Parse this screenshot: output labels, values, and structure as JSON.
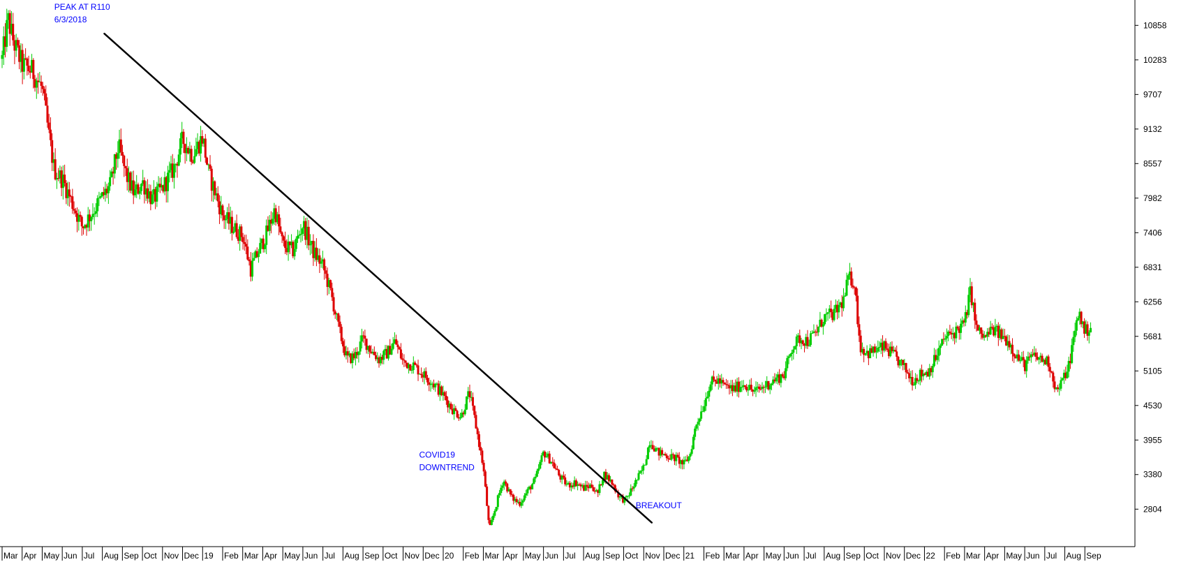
{
  "chart_data": {
    "type": "bar",
    "subtype": "candlestick",
    "title": "",
    "xlabel": "",
    "ylabel": "",
    "up_color": "#00cc00",
    "down_color": "#dd0000",
    "y_ticks": [
      2804,
      3380,
      3955,
      4530,
      5105,
      5681,
      6256,
      6831,
      7406,
      7982,
      8557,
      9132,
      9707,
      10283,
      10858
    ],
    "ylim": [
      2180,
      11280
    ],
    "x_labels": [
      {
        "label": "Mar",
        "t": 0
      },
      {
        "label": "Apr",
        "t": 1
      },
      {
        "label": "May",
        "t": 2
      },
      {
        "label": "Jun",
        "t": 3
      },
      {
        "label": "Jul",
        "t": 4
      },
      {
        "label": "Aug",
        "t": 5
      },
      {
        "label": "Sep",
        "t": 6
      },
      {
        "label": "Oct",
        "t": 7
      },
      {
        "label": "Nov",
        "t": 8
      },
      {
        "label": "Dec",
        "t": 9
      },
      {
        "label": "19",
        "t": 10
      },
      {
        "label": "Feb",
        "t": 11
      },
      {
        "label": "Mar",
        "t": 12
      },
      {
        "label": "Apr",
        "t": 13
      },
      {
        "label": "May",
        "t": 14
      },
      {
        "label": "Jun",
        "t": 15
      },
      {
        "label": "Jul",
        "t": 16
      },
      {
        "label": "Aug",
        "t": 17
      },
      {
        "label": "Sep",
        "t": 18
      },
      {
        "label": "Oct",
        "t": 19
      },
      {
        "label": "Nov",
        "t": 20
      },
      {
        "label": "Dec",
        "t": 21
      },
      {
        "label": "20",
        "t": 22
      },
      {
        "label": "Feb",
        "t": 23
      },
      {
        "label": "Mar",
        "t": 24
      },
      {
        "label": "Apr",
        "t": 25
      },
      {
        "label": "May",
        "t": 26
      },
      {
        "label": "Jun",
        "t": 27
      },
      {
        "label": "Jul",
        "t": 28
      },
      {
        "label": "Aug",
        "t": 29
      },
      {
        "label": "Sep",
        "t": 30
      },
      {
        "label": "Oct",
        "t": 31
      },
      {
        "label": "Nov",
        "t": 32
      },
      {
        "label": "Dec",
        "t": 33
      },
      {
        "label": "21",
        "t": 34
      },
      {
        "label": "Feb",
        "t": 35
      },
      {
        "label": "Mar",
        "t": 36
      },
      {
        "label": "Apr",
        "t": 37
      },
      {
        "label": "May",
        "t": 38
      },
      {
        "label": "Jun",
        "t": 39
      },
      {
        "label": "Jul",
        "t": 40
      },
      {
        "label": "Aug",
        "t": 41
      },
      {
        "label": "Sep",
        "t": 42
      },
      {
        "label": "Oct",
        "t": 43
      },
      {
        "label": "Nov",
        "t": 44
      },
      {
        "label": "Dec",
        "t": 45
      },
      {
        "label": "22",
        "t": 46
      },
      {
        "label": "Feb",
        "t": 47
      },
      {
        "label": "Mar",
        "t": 48
      },
      {
        "label": "Apr",
        "t": 49
      },
      {
        "label": "May",
        "t": 50
      },
      {
        "label": "Jun",
        "t": 51
      },
      {
        "label": "Jul",
        "t": 52
      },
      {
        "label": "Aug",
        "t": 53
      },
      {
        "label": "Sep",
        "t": 54
      }
    ],
    "price_path": [
      [
        0,
        10300
      ],
      [
        0.3,
        10950
      ],
      [
        0.6,
        10550
      ],
      [
        1.0,
        10200
      ],
      [
        1.5,
        10100
      ],
      [
        2.0,
        9800
      ],
      [
        2.3,
        9100
      ],
      [
        2.6,
        8450
      ],
      [
        3.0,
        8300
      ],
      [
        3.5,
        7900
      ],
      [
        4.0,
        7500
      ],
      [
        4.3,
        7650
      ],
      [
        4.8,
        7900
      ],
      [
        5.4,
        8200
      ],
      [
        5.8,
        8850
      ],
      [
        6.2,
        8350
      ],
      [
        6.6,
        8050
      ],
      [
        7.0,
        8250
      ],
      [
        7.5,
        7950
      ],
      [
        8.0,
        8150
      ],
      [
        8.6,
        8500
      ],
      [
        9.0,
        8950
      ],
      [
        9.5,
        8700
      ],
      [
        10.0,
        9000
      ],
      [
        10.3,
        8400
      ],
      [
        10.6,
        8100
      ],
      [
        11.0,
        7700
      ],
      [
        11.5,
        7500
      ],
      [
        12.0,
        7350
      ],
      [
        12.4,
        6800
      ],
      [
        12.8,
        7100
      ],
      [
        13.2,
        7400
      ],
      [
        13.6,
        7800
      ],
      [
        14.0,
        7200
      ],
      [
        14.5,
        7100
      ],
      [
        15.0,
        7550
      ],
      [
        15.5,
        7100
      ],
      [
        16.0,
        6850
      ],
      [
        16.4,
        6400
      ],
      [
        16.8,
        5800
      ],
      [
        17.2,
        5300
      ],
      [
        17.6,
        5350
      ],
      [
        18.0,
        5650
      ],
      [
        18.4,
        5450
      ],
      [
        18.8,
        5300
      ],
      [
        19.2,
        5400
      ],
      [
        19.6,
        5600
      ],
      [
        20.0,
        5250
      ],
      [
        20.5,
        5200
      ],
      [
        21.0,
        5050
      ],
      [
        21.5,
        4900
      ],
      [
        22.0,
        4700
      ],
      [
        22.5,
        4450
      ],
      [
        22.9,
        4350
      ],
      [
        23.3,
        4750
      ],
      [
        23.6,
        4250
      ],
      [
        24.0,
        3500
      ],
      [
        24.3,
        2450
      ],
      [
        24.7,
        2950
      ],
      [
        25.0,
        3300
      ],
      [
        25.4,
        3000
      ],
      [
        25.8,
        2900
      ],
      [
        26.2,
        3100
      ],
      [
        26.6,
        3300
      ],
      [
        27.0,
        3750
      ],
      [
        27.4,
        3600
      ],
      [
        27.8,
        3350
      ],
      [
        28.2,
        3200
      ],
      [
        28.6,
        3250
      ],
      [
        29.0,
        3150
      ],
      [
        29.4,
        3200
      ],
      [
        29.7,
        3050
      ],
      [
        30.0,
        3400
      ],
      [
        30.4,
        3250
      ],
      [
        30.8,
        3000
      ],
      [
        31.1,
        2950
      ],
      [
        31.5,
        3200
      ],
      [
        32.0,
        3500
      ],
      [
        32.3,
        3950
      ],
      [
        32.7,
        3750
      ],
      [
        33.1,
        3700
      ],
      [
        33.6,
        3650
      ],
      [
        34.0,
        3550
      ],
      [
        34.3,
        3700
      ],
      [
        34.6,
        4200
      ],
      [
        35.0,
        4550
      ],
      [
        35.3,
        4900
      ],
      [
        35.7,
        4950
      ],
      [
        36.0,
        4850
      ],
      [
        36.5,
        4800
      ],
      [
        37.0,
        4900
      ],
      [
        37.5,
        4750
      ],
      [
        38.0,
        4850
      ],
      [
        38.5,
        4950
      ],
      [
        39.0,
        5050
      ],
      [
        39.4,
        5500
      ],
      [
        39.8,
        5650
      ],
      [
        40.2,
        5600
      ],
      [
        40.6,
        5750
      ],
      [
        41.0,
        6000
      ],
      [
        41.5,
        6050
      ],
      [
        42.0,
        6300
      ],
      [
        42.2,
        6650
      ],
      [
        42.5,
        6600
      ],
      [
        42.8,
        5500
      ],
      [
        43.2,
        5400
      ],
      [
        43.6,
        5450
      ],
      [
        44.0,
        5500
      ],
      [
        44.5,
        5350
      ],
      [
        45.0,
        5150
      ],
      [
        45.4,
        4950
      ],
      [
        45.8,
        5050
      ],
      [
        46.2,
        5100
      ],
      [
        46.6,
        5350
      ],
      [
        47.0,
        5650
      ],
      [
        47.5,
        5750
      ],
      [
        48.0,
        5900
      ],
      [
        48.3,
        6450
      ],
      [
        48.6,
        5800
      ],
      [
        49.0,
        5650
      ],
      [
        49.4,
        5800
      ],
      [
        49.8,
        5700
      ],
      [
        50.2,
        5600
      ],
      [
        50.6,
        5350
      ],
      [
        51.0,
        5200
      ],
      [
        51.4,
        5350
      ],
      [
        51.8,
        5300
      ],
      [
        52.2,
        5250
      ],
      [
        52.6,
        4750
      ],
      [
        52.9,
        4950
      ],
      [
        53.2,
        5200
      ],
      [
        53.5,
        5750
      ],
      [
        53.7,
        6100
      ],
      [
        54.0,
        5750
      ],
      [
        54.3,
        5850
      ]
    ],
    "trendline": {
      "start": {
        "t": 5.1,
        "y": 10720
      },
      "end": {
        "t": 32.4,
        "y": 2580
      }
    },
    "annotations": [
      {
        "text": "PEAK AT R110",
        "t": 2.6,
        "y": 11120
      },
      {
        "text": "6/3/2018",
        "t": 2.6,
        "y": 10910
      },
      {
        "text": "COVID19",
        "t": 20.8,
        "y": 3660
      },
      {
        "text": "DOWNTREND",
        "t": 20.8,
        "y": 3450
      },
      {
        "text": "BREAKOUT",
        "t": 31.6,
        "y": 2820
      }
    ]
  }
}
